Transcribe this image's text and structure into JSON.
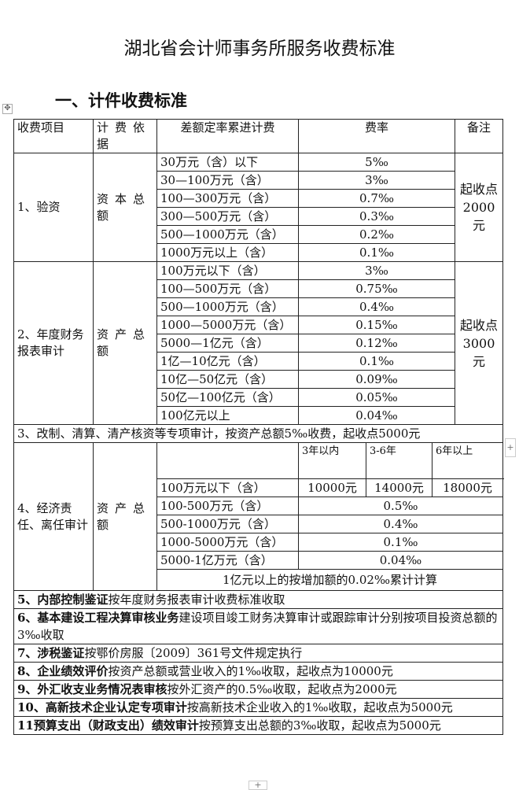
{
  "title": "湖北省会计师事务所服务收费标准",
  "section_heading": "一、计件收费标准",
  "header": {
    "item": "收费项目",
    "basis": "计费依据",
    "range": "差额定率累进计费",
    "rate": "费率",
    "note": "备注"
  },
  "s1": {
    "item": "1、验资",
    "basis": "资本总额",
    "note": "起收点2000元",
    "rows": [
      [
        "30万元（含）以下",
        "5‰"
      ],
      [
        "30—100万元（含）",
        "3‰"
      ],
      [
        "100—300万元（含）",
        "0.7‰"
      ],
      [
        "300—500万元（含）",
        "0.3‰"
      ],
      [
        "500—1000万元（含）",
        "0.2‰"
      ],
      [
        "1000万元以上（含）",
        "0.1‰"
      ]
    ]
  },
  "s2": {
    "item": "2、年度财务报表审计",
    "basis": "资产总额",
    "note": "起收点3000元",
    "rows": [
      [
        "100万元以下（含）",
        "3‰"
      ],
      [
        "100—500万元（含）",
        "0.75‰"
      ],
      [
        "500—1000万元（含）",
        "0.4‰"
      ],
      [
        "1000—5000万元（含）",
        "0.15‰"
      ],
      [
        "5000—1亿元（含）",
        "0.12‰"
      ],
      [
        "1亿—10亿元（含）",
        "0.1‰"
      ],
      [
        "10亿—50亿元（含）",
        "0.09‰"
      ],
      [
        "50亿—100亿元（含）",
        "0.05‰"
      ],
      [
        "100亿元以上",
        "0.04‰"
      ]
    ]
  },
  "s3": "3、改制、清算、清产核资等专项审计，按资产总额5‰收费，起收点5000元",
  "s4": {
    "item": "4、经济责任、离任审计",
    "basis": "资产总额",
    "periods": [
      "3年以内",
      "3-6年",
      "6年以上"
    ],
    "first": {
      "range": "100万元以下（含）",
      "fees": [
        "10000元",
        "14000元",
        "18000元"
      ]
    },
    "rows": [
      [
        "100-500万元（含）",
        "0.5‰"
      ],
      [
        "500-1000万元（含）",
        "0.4‰"
      ],
      [
        "1000-5000万元（含）",
        "0.1‰"
      ],
      [
        "5000-1亿万元（含）",
        "0.04‰"
      ]
    ],
    "footer": "1亿元以上的按增加额的0.02‰累计计算"
  },
  "items": [
    {
      "bold": "5、内部控制鉴证",
      "text": "按年度财务报表审计收费标准收取"
    },
    {
      "bold": "6、基本建设工程决算审核业务",
      "text": "建设项目竣工财务决算审计或跟踪审计分别按项目投资总额的3‰收取"
    },
    {
      "bold": "7、涉税鉴证",
      "text": "按鄂价房服〔2009〕361号文件规定执行"
    },
    {
      "bold": "8、企业绩效评价",
      "text": "按资产总额或营业收入的1‰收取，起收点为10000元"
    },
    {
      "bold": "9、外汇收支业务情况表审核",
      "text": "按外汇资产的0.5‰收取，起收点为2000元"
    },
    {
      "bold": "10、高新技术企业认定专项审计",
      "text": "按高新技术企业收入的1‰收取，起收点为5000元"
    },
    {
      "bold": "11预算支出（财政支出）绩效审计",
      "text": "按预算支出总额的3‰收取，起收点为5000元"
    }
  ]
}
